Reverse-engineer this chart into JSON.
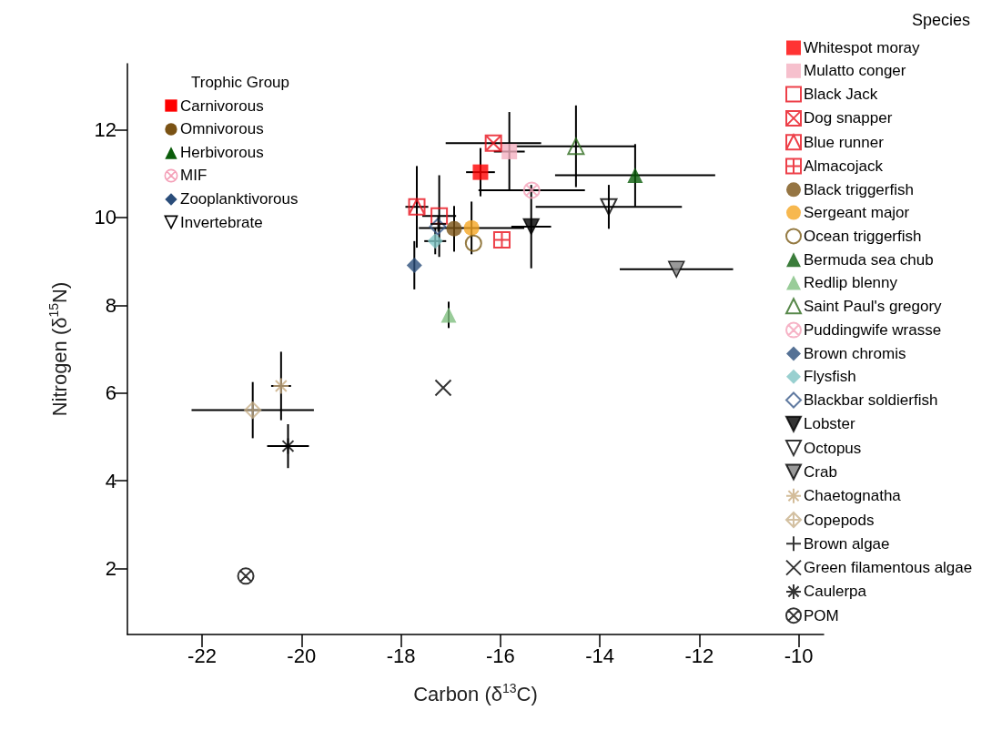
{
  "chart_data": {
    "type": "scatter",
    "xlabel": "Carbon (δ$^{13}$C)",
    "ylabel": "Nitrogen (δ$^{15}$N)",
    "legend_title": "Species",
    "legend": "right",
    "xlim": [
      -23.5,
      -9.5
    ],
    "xticks": [
      -22,
      -20,
      -18,
      -16,
      -14,
      -12,
      -10
    ],
    "ylim": [
      0.5,
      13.5
    ],
    "yticks": [
      2,
      4,
      6,
      8,
      10,
      12
    ],
    "grid": false,
    "annotations": [
      "Trophic Group",
      "Carnivorous",
      "Omnivorous",
      "Herbivorous",
      "MIF",
      "Zooplanktivorous",
      "Invertebrate"
    ],
    "series": [
      {
        "name": "Whitespot moray",
        "color": "#ff0000",
        "marker": "square",
        "x": [
          -16.4
        ],
        "values": [
          11.03
        ],
        "xerrors": [
          0.29
        ],
        "errors": [
          0.55
        ]
      },
      {
        "name": "Mulatto conger",
        "color": "#f4b0c0",
        "marker": "square",
        "x": [
          -15.82
        ],
        "values": [
          11.5
        ],
        "xerrors": [
          0.31
        ],
        "errors": [
          0.9
        ]
      },
      {
        "name": "Black Jack",
        "color": "#e8101c",
        "marker": "square-open",
        "x": [
          -17.23
        ],
        "values": [
          10.03
        ],
        "xerrors": [
          0.34
        ],
        "errors": [
          0.93
        ]
      },
      {
        "name": "Dog snapper",
        "color": "#e8101c",
        "marker": "cross",
        "x": [
          -16.14
        ],
        "values": [
          11.69
        ],
        "xerrors": [
          0.96
        ],
        "errors": [
          null
        ]
      },
      {
        "name": "Blue runner",
        "color": "#e8101c",
        "marker": "cross",
        "x": [
          -17.68
        ],
        "values": [
          10.24
        ],
        "xerrors": [
          0.23
        ],
        "errors": [
          0.93
        ]
      },
      {
        "name": "Almacojack",
        "color": "#e8101c",
        "marker": "cross",
        "x": [
          -15.97
        ],
        "values": [
          9.49
        ],
        "xerrors": [
          null
        ],
        "errors": [
          null
        ]
      },
      {
        "name": "Black triggerfish",
        "color": "#7a5214",
        "marker": "circle",
        "x": [
          -16.93
        ],
        "values": [
          9.74
        ],
        "xerrors": [
          null
        ],
        "errors": [
          0.52
        ]
      },
      {
        "name": "Sergeant major",
        "color": "#f5a623",
        "marker": "circle",
        "x": [
          -16.58
        ],
        "values": [
          9.76
        ],
        "xerrors": [
          1.06
        ],
        "errors": [
          0.6
        ]
      },
      {
        "name": "Ocean triggerfish",
        "color": "#7a5a14",
        "marker": "circle-open",
        "x": [
          -16.54
        ],
        "values": [
          9.41
        ],
        "xerrors": [
          null
        ],
        "errors": [
          null
        ]
      },
      {
        "name": "Bermuda sea chub",
        "color": "#0a5c0a",
        "marker": "triangle",
        "x": [
          -13.29
        ],
        "values": [
          10.96
        ],
        "xerrors": [
          1.61
        ],
        "errors": [
          0.71
        ]
      },
      {
        "name": "Redlip blenny",
        "color": "#7fbf7f",
        "marker": "triangle",
        "x": [
          -17.04
        ],
        "values": [
          7.78
        ],
        "xerrors": [
          null
        ],
        "errors": [
          0.3
        ]
      },
      {
        "name": "Saint Paul's gregory",
        "color": "#2e6b1e",
        "marker": "triangle-open",
        "x": [
          -14.48
        ],
        "values": [
          11.62
        ],
        "xerrors": [
          1.2
        ],
        "errors": [
          0.93
        ]
      },
      {
        "name": "Puddingwife wrasse",
        "color": "#f4a0b8",
        "marker": "cross",
        "x": [
          -15.37
        ],
        "values": [
          10.62
        ],
        "xerrors": [
          1.07
        ],
        "errors": [
          null
        ]
      },
      {
        "name": "Brown chromis",
        "color": "#2a4d7a",
        "marker": "diamond",
        "x": [
          -17.73
        ],
        "values": [
          8.91
        ],
        "xerrors": [
          null
        ],
        "errors": [
          0.55
        ]
      },
      {
        "name": "Flysfish",
        "color": "#7fc4c4",
        "marker": "diamond",
        "x": [
          -17.31
        ],
        "values": [
          9.46
        ],
        "xerrors": [
          0.22
        ],
        "errors": [
          0.3
        ]
      },
      {
        "name": "Blackbar soldierfish",
        "color": "#3a5a8a",
        "marker": "diamond-open",
        "x": [
          -17.26
        ],
        "values": [
          9.79
        ],
        "xerrors": [
          null
        ],
        "errors": [
          null
        ]
      },
      {
        "name": "Lobster",
        "color": "#000000",
        "marker": "triangle-down",
        "x": [
          -15.38
        ],
        "values": [
          9.79
        ],
        "xerrors": [
          0.4
        ],
        "errors": [
          0.95
        ]
      },
      {
        "name": "Octopus",
        "color": "#000000",
        "marker": "triangle-down-open",
        "x": [
          -13.82
        ],
        "values": [
          10.24
        ],
        "xerrors": [
          1.47
        ],
        "errors": [
          0.5
        ]
      },
      {
        "name": "Crab",
        "color": "#808080",
        "marker": "triangle-down",
        "x": [
          -12.46
        ],
        "values": [
          8.82
        ],
        "xerrors": [
          1.14
        ],
        "errors": [
          null
        ]
      },
      {
        "name": "Chaetognatha",
        "color": "#c8ab80",
        "marker": "cross",
        "x": [
          -20.41
        ],
        "values": [
          6.16
        ],
        "xerrors": [
          0.2
        ],
        "errors": [
          0.78
        ]
      },
      {
        "name": "Copepods",
        "color": "#c8b08a",
        "marker": "cross",
        "x": [
          -20.98
        ],
        "values": [
          5.61
        ],
        "xerrors": [
          1.23
        ],
        "errors": [
          0.64
        ]
      },
      {
        "name": "Brown algae",
        "color": "#000000",
        "marker": "plus",
        "x": [
          -17.25
        ],
        "values": [
          9.85
        ],
        "xerrors": [
          null
        ],
        "errors": [
          null
        ]
      },
      {
        "name": "Green filamentous algae",
        "color": "#000000",
        "marker": "x",
        "x": [
          -17.15
        ],
        "values": [
          6.12
        ],
        "xerrors": [
          null
        ],
        "errors": [
          null
        ]
      },
      {
        "name": "Caulerpa",
        "color": "#000000",
        "marker": "cross",
        "x": [
          -20.27
        ],
        "values": [
          4.79
        ],
        "xerrors": [
          0.42
        ],
        "errors": [
          0.5
        ]
      },
      {
        "name": "POM",
        "color": "#000000",
        "marker": "cross",
        "x": [
          -21.12
        ],
        "values": [
          1.83
        ],
        "xerrors": [
          null
        ],
        "errors": [
          null
        ]
      }
    ]
  }
}
